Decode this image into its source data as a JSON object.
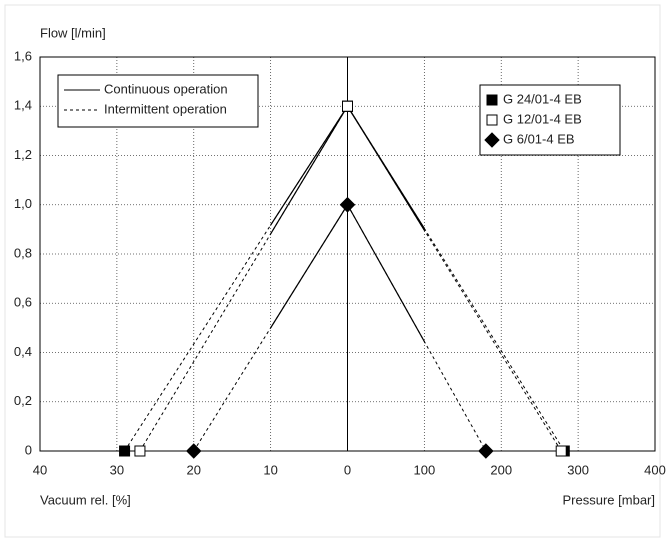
{
  "chart_data": {
    "type": "line",
    "y_label": "Flow [l/min]",
    "x_label": "Vacuum rel. [%]",
    "x2_label": "Pressure [mbar]",
    "xlim": [
      40,
      0
    ],
    "xticks": [
      40,
      30,
      20,
      10,
      0
    ],
    "x2lim": [
      0,
      400
    ],
    "x2ticks": [
      100,
      200,
      300,
      400
    ],
    "ylim": [
      0,
      1.6
    ],
    "yticks": [
      0,
      {
        "value": 0.2,
        "label": "0,2"
      },
      {
        "value": 0.4,
        "label": "0,4"
      },
      {
        "value": 0.6,
        "label": "0,6"
      },
      {
        "value": 0.8,
        "label": "0,8"
      },
      {
        "value": 1.0,
        "label": "1,0"
      },
      {
        "value": 1.2,
        "label": "1,2"
      },
      {
        "value": 1.4,
        "label": "1,4"
      },
      {
        "value": 1.6,
        "label": "1,6"
      }
    ],
    "grid": true,
    "continuous_limit_vacuum": 10,
    "continuous_limit_pressure": 100,
    "line_legend": [
      "Continuous operation",
      "Intermittent operation"
    ],
    "series": [
      {
        "name": "G 24/01-4 EB",
        "marker": "square",
        "color": "#000000",
        "fill": "#000000",
        "vacuum_x": [
          29,
          0
        ],
        "vacuum_y": [
          0,
          1.4
        ],
        "pressure_x": [
          0,
          282
        ],
        "pressure_y": [
          1.4,
          0
        ]
      },
      {
        "name": "G 12/01-4 EB",
        "marker": "square",
        "color": "#000000",
        "fill": "#ffffff",
        "vacuum_x": [
          27,
          0
        ],
        "vacuum_y": [
          0,
          1.4
        ],
        "pressure_x": [
          0,
          278
        ],
        "pressure_y": [
          1.4,
          0
        ]
      },
      {
        "name": "G 6/01-4 EB",
        "marker": "diamond",
        "color": "#000000",
        "fill": "#000000",
        "vacuum_x": [
          20,
          0
        ],
        "vacuum_y": [
          0,
          1.0
        ],
        "pressure_x": [
          0,
          180
        ],
        "pressure_y": [
          1.0,
          0
        ]
      }
    ]
  }
}
